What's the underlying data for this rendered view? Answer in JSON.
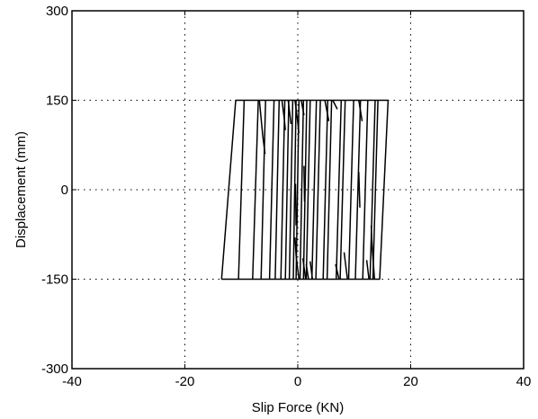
{
  "chart_data": {
    "type": "line",
    "title": "",
    "xlabel": "Slip Force (KN)",
    "ylabel": "Displacement (mm)",
    "xlim": [
      -40,
      40
    ],
    "ylim": [
      -300,
      300
    ],
    "xticks": [
      -40,
      -20,
      0,
      20,
      40
    ],
    "yticks": [
      -300,
      -150,
      0,
      150,
      300
    ],
    "xtick_labels": [
      "-40",
      "-20",
      "0",
      "20",
      "40"
    ],
    "ytick_labels": [
      "-300",
      "-150",
      "0",
      "150",
      "300"
    ],
    "grid": "dotted",
    "line_color": "#000000",
    "envelope": {
      "name": "hysteresis-envelope",
      "x": [
        -13.5,
        -11,
        16,
        14.5,
        -13.5
      ],
      "y": [
        -150,
        150,
        150,
        -150,
        -150
      ]
    },
    "strokes": [
      {
        "x": [
          -10.5,
          -9.5
        ],
        "y": [
          -150,
          150
        ]
      },
      {
        "x": [
          -8,
          -7
        ],
        "y": [
          -150,
          150
        ]
      },
      {
        "x": [
          -6.5,
          -5.7
        ],
        "y": [
          -150,
          150
        ]
      },
      {
        "x": [
          -5,
          -4.2
        ],
        "y": [
          -150,
          150
        ]
      },
      {
        "x": [
          -4,
          -3.3
        ],
        "y": [
          -150,
          150
        ]
      },
      {
        "x": [
          -3,
          -2.3
        ],
        "y": [
          -150,
          150
        ]
      },
      {
        "x": [
          -2.2,
          -1.6
        ],
        "y": [
          -150,
          150
        ]
      },
      {
        "x": [
          -1.5,
          -0.9
        ],
        "y": [
          -150,
          150
        ]
      },
      {
        "x": [
          -0.8,
          -0.3
        ],
        "y": [
          -150,
          150
        ]
      },
      {
        "x": [
          -0.3,
          0.2
        ],
        "y": [
          -150,
          150
        ]
      },
      {
        "x": [
          0.4,
          1.0
        ],
        "y": [
          -150,
          150
        ]
      },
      {
        "x": [
          1.0,
          1.6
        ],
        "y": [
          -150,
          150
        ]
      },
      {
        "x": [
          1.5,
          2.2
        ],
        "y": [
          -150,
          150
        ]
      },
      {
        "x": [
          2.5,
          3.3
        ],
        "y": [
          -150,
          150
        ]
      },
      {
        "x": [
          3.2,
          4.0
        ],
        "y": [
          -150,
          150
        ]
      },
      {
        "x": [
          4.5,
          5.3
        ],
        "y": [
          -150,
          150
        ]
      },
      {
        "x": [
          5.2,
          6.0
        ],
        "y": [
          -150,
          150
        ]
      },
      {
        "x": [
          6.8,
          7.7
        ],
        "y": [
          -150,
          150
        ]
      },
      {
        "x": [
          7.5,
          8.4
        ],
        "y": [
          -150,
          150
        ]
      },
      {
        "x": [
          9.0,
          9.9
        ],
        "y": [
          -150,
          150
        ]
      },
      {
        "x": [
          10.2,
          11.1
        ],
        "y": [
          -150,
          150
        ]
      },
      {
        "x": [
          11.5,
          12.4
        ],
        "y": [
          -150,
          150
        ]
      },
      {
        "x": [
          12.8,
          13.7
        ],
        "y": [
          -150,
          150
        ]
      },
      {
        "x": [
          13.3,
          14.2
        ],
        "y": [
          -150,
          150
        ]
      },
      {
        "x": [
          -6.8,
          -6.2,
          -5.8
        ],
        "y": [
          150,
          90,
          60
        ]
      },
      {
        "x": [
          -2.8,
          -2.4,
          -2.2
        ],
        "y": [
          150,
          120,
          100
        ]
      },
      {
        "x": [
          -1.7,
          -1.2
        ],
        "y": [
          150,
          110
        ]
      },
      {
        "x": [
          -0.5,
          -0.1,
          0.2
        ],
        "y": [
          150,
          120,
          95
        ]
      },
      {
        "x": [
          0.6,
          1.1
        ],
        "y": [
          150,
          125
        ]
      },
      {
        "x": [
          4.8,
          5.5
        ],
        "y": [
          150,
          115
        ]
      },
      {
        "x": [
          6.2,
          7.0
        ],
        "y": [
          150,
          135
        ]
      },
      {
        "x": [
          10.8,
          11.4
        ],
        "y": [
          150,
          115
        ]
      },
      {
        "x": [
          0.2,
          -0.3,
          -0.5
        ],
        "y": [
          -150,
          -110,
          -80
        ]
      },
      {
        "x": [
          1.4,
          0.9
        ],
        "y": [
          -150,
          -115
        ]
      },
      {
        "x": [
          1.9,
          1.5
        ],
        "y": [
          -150,
          -125
        ]
      },
      {
        "x": [
          2.6,
          2.2
        ],
        "y": [
          -150,
          -120
        ]
      },
      {
        "x": [
          7.3,
          6.7
        ],
        "y": [
          -150,
          -125
        ]
      },
      {
        "x": [
          8.8,
          8.2
        ],
        "y": [
          -150,
          -105
        ]
      },
      {
        "x": [
          12.6,
          12.2
        ],
        "y": [
          -150,
          -118
        ]
      },
      {
        "x": [
          13.6,
          13.2,
          13.0
        ],
        "y": [
          -150,
          -100,
          -60
        ]
      },
      {
        "x": [
          -0.3,
          -0.4
        ],
        "y": [
          -60,
          10
        ]
      },
      {
        "x": [
          1.2,
          1.1
        ],
        "y": [
          -20,
          40
        ]
      },
      {
        "x": [
          11.0,
          10.8
        ],
        "y": [
          -30,
          30
        ]
      }
    ]
  }
}
